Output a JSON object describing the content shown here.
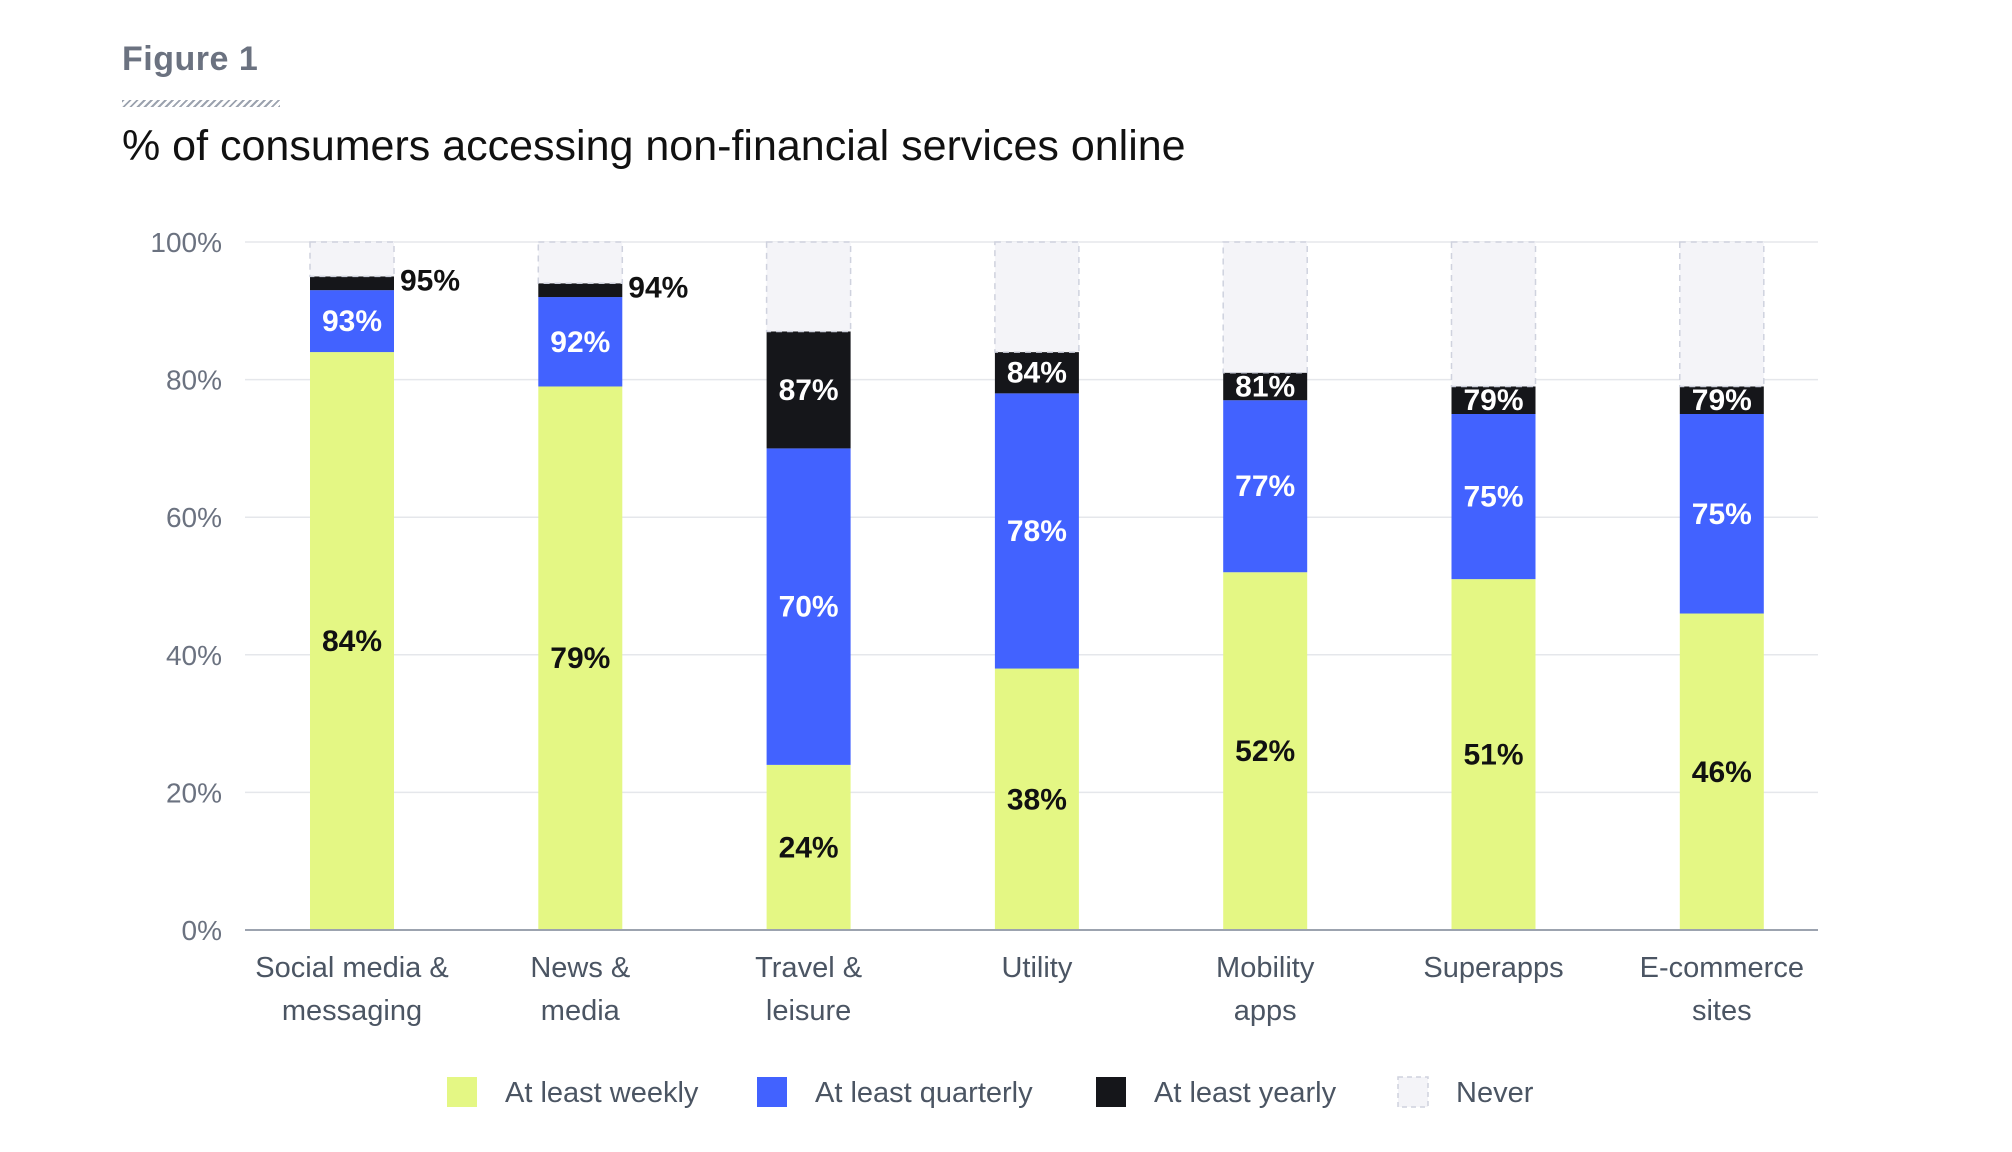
{
  "figure_label": "Figure 1",
  "chart_data": {
    "type": "bar",
    "stacked": true,
    "title": "% of consumers accessing non-financial services online",
    "ylim": [
      0,
      100
    ],
    "yticks": [
      "0%",
      "20%",
      "40%",
      "60%",
      "80%",
      "100%"
    ],
    "ytick_values": [
      0,
      20,
      40,
      60,
      80,
      100
    ],
    "grid": true,
    "legend_position": "bottom",
    "categories": [
      [
        "Social media &",
        "messaging"
      ],
      [
        "News &",
        "media"
      ],
      [
        "Travel &",
        "leisure"
      ],
      [
        "Utility"
      ],
      [
        "Mobility",
        "apps"
      ],
      [
        "Superapps"
      ],
      [
        "E-commerce",
        "sites"
      ]
    ],
    "series": [
      {
        "name": "At least weekly",
        "color": "#e4f784",
        "label_color": "#111111",
        "cumulative": [
          84,
          79,
          24,
          38,
          52,
          51,
          46
        ],
        "labels": [
          "84%",
          "79%",
          "24%",
          "38%",
          "52%",
          "51%",
          "46%"
        ]
      },
      {
        "name": "At least quarterly",
        "color": "#4262ff",
        "label_color": "#ffffff",
        "cumulative": [
          93,
          92,
          70,
          78,
          77,
          75,
          75
        ],
        "labels": [
          "93%",
          "92%",
          "70%",
          "78%",
          "77%",
          "75%",
          "75%"
        ]
      },
      {
        "name": "At least yearly",
        "color": "#15161a",
        "label_color": "#ffffff",
        "cumulative": [
          95,
          94,
          87,
          84,
          81,
          79,
          79
        ],
        "labels": [
          "95%",
          "94%",
          "87%",
          "84%",
          "81%",
          "79%",
          "79%"
        ]
      },
      {
        "name": "Never",
        "color": "#f4f4f8",
        "label_color": "#111111",
        "cumulative": [
          100,
          100,
          100,
          100,
          100,
          100,
          100
        ],
        "labels": []
      }
    ]
  }
}
